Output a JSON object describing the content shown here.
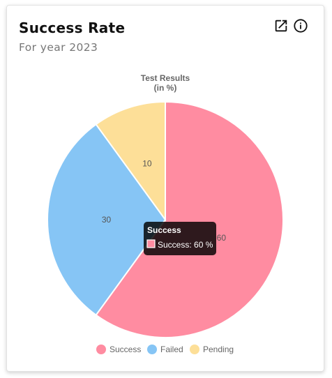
{
  "card": {
    "title": "Success Rate",
    "subtitle": "For year 2023"
  },
  "icons": {
    "open": "open-in-new-icon",
    "info": "info-icon"
  },
  "chart_data": {
    "type": "pie",
    "title": [
      "Test Results",
      "(in %)"
    ],
    "categories": [
      "Success",
      "Failed",
      "Pending"
    ],
    "values": [
      60,
      30,
      10
    ],
    "colors": [
      "#ff8ca1",
      "#86c5f5",
      "#fddf98"
    ],
    "legend_position": "bottom",
    "tooltip": {
      "title": "Success",
      "label": "Success: 60 %"
    }
  }
}
